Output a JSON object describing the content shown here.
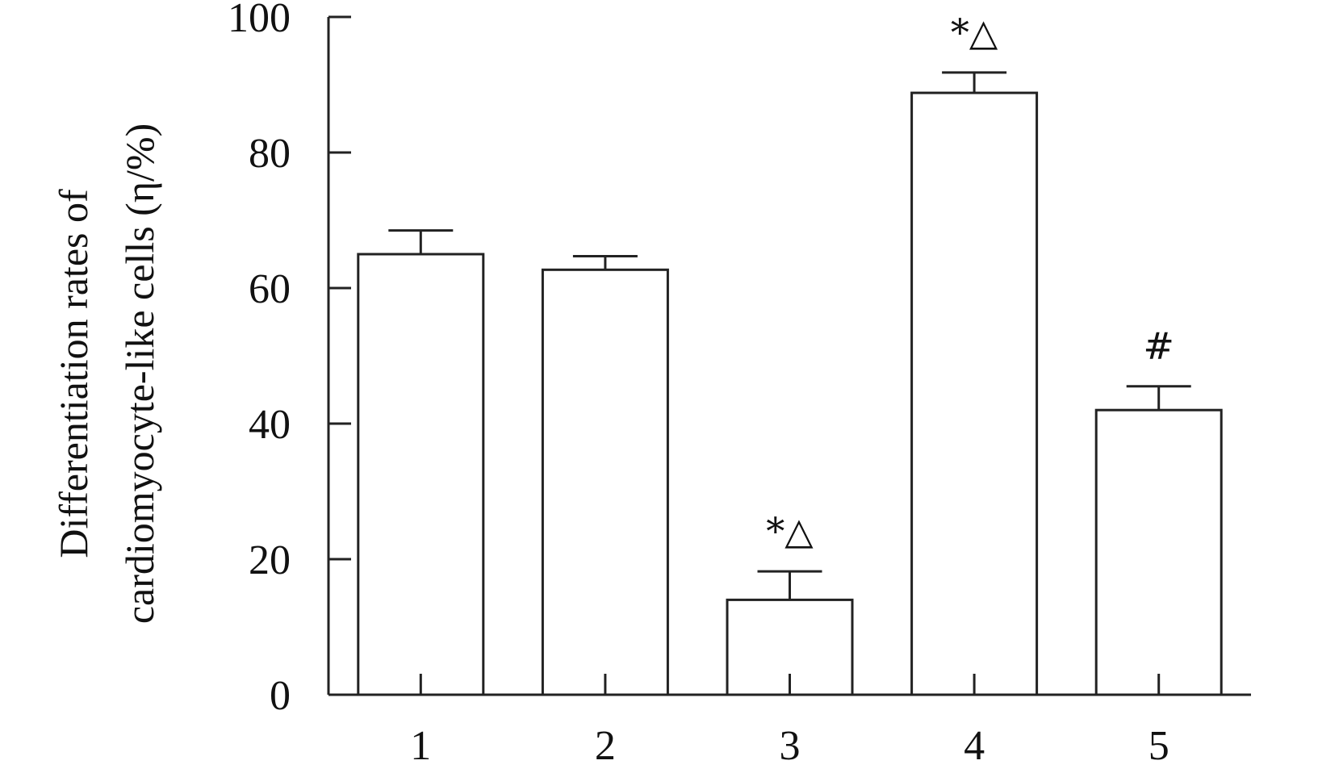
{
  "chart_data": {
    "type": "bar",
    "title": "",
    "xlabel": "",
    "ylabel_lines": [
      "Differentiation rates of",
      "cardiomyocyte-like cells (η/%)"
    ],
    "categories": [
      "1",
      "2",
      "3",
      "4",
      "5"
    ],
    "values": [
      65,
      62.7,
      14,
      88.8,
      42
    ],
    "error": [
      3.5,
      2,
      4.2,
      3,
      3.5
    ],
    "annotations": [
      "",
      "",
      "*△",
      "*△",
      "#"
    ],
    "ylim": [
      0,
      100
    ],
    "yticks": [
      0,
      20,
      40,
      60,
      80,
      100
    ],
    "grid": false,
    "legend": "none",
    "colors": {
      "bar_fill": "#ffffff",
      "stroke": "#222222"
    }
  }
}
